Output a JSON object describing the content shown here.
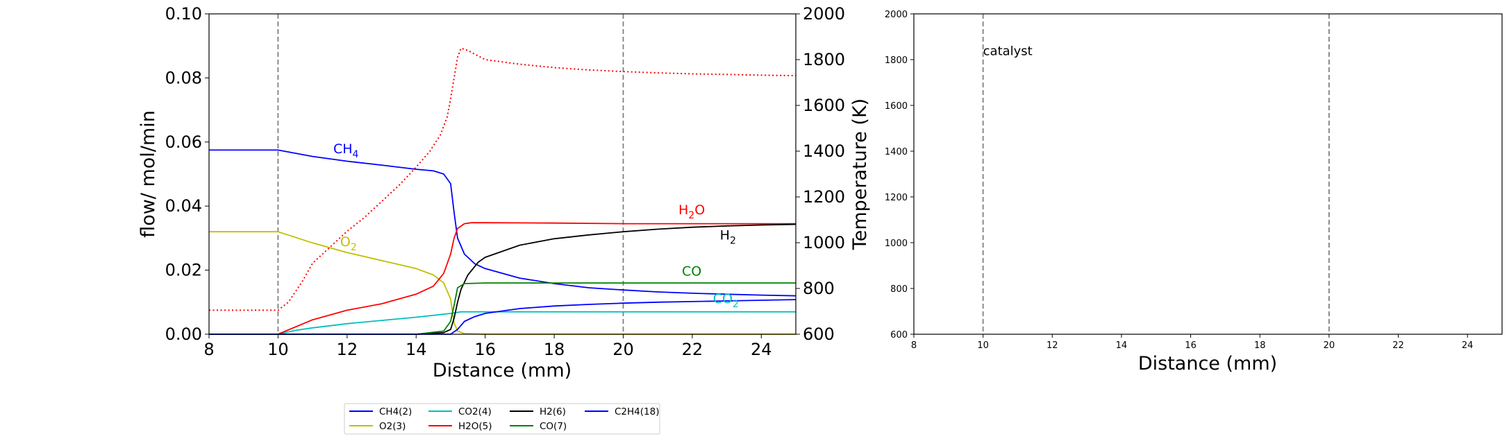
{
  "chart_data": [
    {
      "type": "line",
      "xlabel": "Distance (mm)",
      "ylabel": "flow/ mol/min",
      "y2label": "Temperature (K)",
      "xlim": [
        8,
        25
      ],
      "ylim": [
        0,
        0.1
      ],
      "y2lim": [
        600,
        2000
      ],
      "xticks": [
        "8",
        "10",
        "12",
        "14",
        "16",
        "18",
        "20",
        "22",
        "24"
      ],
      "yticks": [
        "0.00",
        "0.02",
        "0.04",
        "0.06",
        "0.08",
        "0.10"
      ],
      "y2ticks": [
        "600",
        "800",
        "1000",
        "1200",
        "1400",
        "1600",
        "1800",
        "2000"
      ],
      "vlines": [
        10,
        20
      ],
      "grid": false,
      "legend": {
        "placement": "below",
        "entries": [
          {
            "label": "CH4(2)",
            "color": "#0000ff"
          },
          {
            "label": "CO2(4)",
            "color": "#00bfbf"
          },
          {
            "label": "H2(6)",
            "color": "#000000"
          },
          {
            "label": "C2H4(18)",
            "color": "#0000ff"
          },
          {
            "label": "O2(3)",
            "color": "#bfbf00"
          },
          {
            "label": "H2O(5)",
            "color": "#ff0000"
          },
          {
            "label": "CO(7)",
            "color": "#008000"
          }
        ]
      },
      "annotations": [
        {
          "base": "CH",
          "sub": "4",
          "x": 11.6,
          "y": 0.0565,
          "color": "#0000ff"
        },
        {
          "base": "O",
          "sub": "2",
          "x": 11.8,
          "y": 0.0275,
          "color": "#bfbf00"
        },
        {
          "base": "H",
          "sub": "2",
          "mid": "O",
          "x": 21.6,
          "y": 0.0375,
          "color": "#ff0000"
        },
        {
          "base": "H",
          "sub": "2",
          "x": 22.8,
          "y": 0.0295,
          "color": "#000000"
        },
        {
          "base": "CO",
          "sub": "",
          "x": 21.7,
          "y": 0.0183,
          "color": "#008000"
        },
        {
          "base": "CO",
          "sub": "2",
          "x": 22.6,
          "y": 0.0097,
          "color": "#00bfbf"
        }
      ],
      "series": [
        {
          "color": "#0000ff",
          "axis": "left",
          "style": "solid",
          "x": [
            8,
            10,
            11,
            12,
            13,
            14,
            14.5,
            14.8,
            15.0,
            15.1,
            15.2,
            15.4,
            15.7,
            16,
            17,
            18,
            19,
            20,
            21,
            22,
            23,
            24,
            25
          ],
          "y": [
            0.0575,
            0.0575,
            0.0555,
            0.054,
            0.0528,
            0.0515,
            0.051,
            0.05,
            0.047,
            0.038,
            0.03,
            0.025,
            0.022,
            0.0205,
            0.0175,
            0.0158,
            0.0145,
            0.0138,
            0.0132,
            0.0128,
            0.0125,
            0.0122,
            0.012
          ]
        },
        {
          "color": "#bfbf00",
          "axis": "left",
          "style": "solid",
          "x": [
            8,
            10,
            11,
            12,
            13,
            14,
            14.5,
            14.8,
            15.0,
            15.1,
            15.2,
            15.4,
            16,
            20,
            25
          ],
          "y": [
            0.032,
            0.032,
            0.0285,
            0.0255,
            0.023,
            0.0205,
            0.0185,
            0.016,
            0.011,
            0.0035,
            0.001,
            0.0002,
            0,
            0,
            0
          ]
        },
        {
          "color": "#00bfbf",
          "axis": "left",
          "style": "solid",
          "x": [
            8,
            10,
            10.5,
            11,
            12,
            13,
            14,
            15,
            15.3,
            16,
            20,
            25
          ],
          "y": [
            0,
            0,
            0.0012,
            0.002,
            0.0033,
            0.0043,
            0.0053,
            0.0065,
            0.007,
            0.007,
            0.007,
            0.007
          ]
        },
        {
          "color": "#ff0000",
          "axis": "left",
          "style": "solid",
          "x": [
            8,
            10,
            11,
            12,
            13,
            14,
            14.5,
            14.8,
            15.0,
            15.1,
            15.2,
            15.4,
            15.6,
            16,
            18,
            20,
            22,
            25
          ],
          "y": [
            0,
            0,
            0.0045,
            0.0075,
            0.0095,
            0.0125,
            0.015,
            0.019,
            0.025,
            0.03,
            0.033,
            0.0345,
            0.0348,
            0.0348,
            0.0347,
            0.0345,
            0.0345,
            0.0345
          ]
        },
        {
          "color": "#000000",
          "axis": "left",
          "style": "solid",
          "x": [
            8,
            10,
            14,
            14.8,
            15.0,
            15.1,
            15.2,
            15.3,
            15.5,
            15.8,
            16,
            17,
            18,
            19,
            20,
            21,
            22,
            23,
            24,
            25
          ],
          "y": [
            0,
            0,
            0,
            0.0005,
            0.0015,
            0.005,
            0.01,
            0.014,
            0.0185,
            0.0225,
            0.024,
            0.0278,
            0.0298,
            0.031,
            0.032,
            0.0328,
            0.0334,
            0.0338,
            0.0341,
            0.0343
          ]
        },
        {
          "color": "#008000",
          "axis": "left",
          "style": "solid",
          "x": [
            8,
            10,
            14,
            14.8,
            15.0,
            15.1,
            15.2,
            15.4,
            16,
            18,
            20,
            25
          ],
          "y": [
            0,
            0,
            0,
            0.001,
            0.004,
            0.009,
            0.0145,
            0.0158,
            0.016,
            0.016,
            0.016,
            0.016
          ]
        },
        {
          "color": "#0000ff",
          "axis": "left",
          "style": "solid",
          "x": [
            8,
            10,
            14,
            15.0,
            15.2,
            15.4,
            15.7,
            16,
            17,
            18,
            19,
            20,
            21,
            22,
            23,
            24,
            25
          ],
          "y": [
            0,
            0,
            0,
            0,
            0.0015,
            0.004,
            0.0055,
            0.0065,
            0.008,
            0.0088,
            0.0093,
            0.0097,
            0.01,
            0.0102,
            0.0104,
            0.0106,
            0.0108
          ]
        },
        {
          "color": "#ff0000",
          "axis": "right",
          "style": "dotted",
          "x": [
            8,
            10,
            10.3,
            10.7,
            11,
            11.5,
            12,
            12.5,
            13,
            13.5,
            14,
            14.4,
            14.7,
            14.9,
            15.0,
            15.1,
            15.2,
            15.3,
            15.5,
            16,
            17,
            18,
            19,
            20,
            21,
            22,
            23,
            24,
            25
          ],
          "y": [
            705,
            705,
            740,
            830,
            910,
            980,
            1050,
            1110,
            1180,
            1250,
            1330,
            1400,
            1470,
            1550,
            1630,
            1720,
            1810,
            1850,
            1840,
            1800,
            1780,
            1765,
            1755,
            1748,
            1742,
            1738,
            1735,
            1732,
            1730
          ]
        }
      ]
    },
    {
      "type": "line",
      "xlabel": "Distance (mm)",
      "xlim": [
        8,
        25
      ],
      "ylim": [
        600,
        2000
      ],
      "xticks": [
        "8",
        "10",
        "12",
        "14",
        "16",
        "18",
        "20",
        "22",
        "24"
      ],
      "yticks": [
        "600",
        "800",
        "1000",
        "1200",
        "1400",
        "1600",
        "1800",
        "2000"
      ],
      "vlines": [
        10,
        20
      ],
      "grid": false,
      "annotations": [
        {
          "text": "catalyst",
          "x": 10,
          "y": 1820
        }
      ],
      "series": []
    }
  ]
}
